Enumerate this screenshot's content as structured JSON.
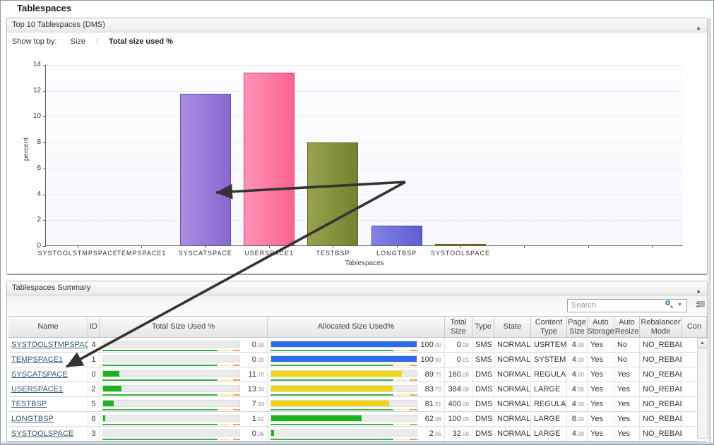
{
  "window": {
    "title": "Tablespaces"
  },
  "top_panel": {
    "title": "Top 10 Tablespaces (DMS)",
    "collapse_icon": "▲",
    "show_top_by_label": "Show top by:",
    "separator": "|",
    "options": [
      {
        "label": "Size",
        "selected": false
      },
      {
        "label": "Total size used %",
        "selected": true
      }
    ]
  },
  "chart_data": {
    "type": "bar",
    "title": "Top 10 Tablespaces (DMS)",
    "xlabel": "Tablespaces",
    "ylabel": "percent",
    "ylim": [
      0,
      14
    ],
    "ytick_step": 2,
    "grid": true,
    "categories": [
      "SYSTOOLSTMPSPACE",
      "TEMPSPACE1",
      "SYSCATSPACE",
      "USERSPACE1",
      "TESTBSP",
      "LONGTBSP",
      "SYSTOOLSPACE",
      "",
      "",
      ""
    ],
    "values": [
      0,
      0,
      11.7,
      13.34,
      7.93,
      1.51,
      0.06,
      null,
      null,
      null
    ],
    "bar_colors": [
      null,
      null,
      {
        "light": "#a88ee3",
        "dark": "#8968d0",
        "border": "#6a4bb4"
      },
      {
        "light": "#ff93b4",
        "dark": "#fa6391",
        "border": "#d93a70"
      },
      {
        "light": "#98a24e",
        "dark": "#75812e",
        "border": "#5c671f"
      },
      {
        "light": "#8183e6",
        "dark": "#5e60d2",
        "border": "#4244ac"
      },
      {
        "light": "#9a7d22",
        "dark": "#8a6d1a",
        "border": "#6f570f"
      },
      null,
      null,
      null
    ]
  },
  "summary_panel": {
    "title": "Tablespaces Summary",
    "collapse_icon": "▲",
    "search_placeholder": "Search",
    "search_caret": "▼",
    "scroll_up_icon": "▲"
  },
  "table": {
    "columns": [
      "Name",
      "ID",
      "Total Size Used %",
      "Allocated Size Used%",
      "Total Size",
      "Type",
      "State",
      "Content Type",
      "Page Size",
      "Auto Storage",
      "Auto Resize",
      "Rebalancer Mode",
      "Con"
    ],
    "rows": [
      {
        "name": "SYSTOOLSTMPSPACE",
        "id": "4",
        "total_used": "0.00",
        "alloc_used": "100.00",
        "alloc_color": "blue",
        "total_size": "0.00",
        "type": "SMS",
        "state": "NORMAL",
        "content_type": "USRTEMP",
        "page_size": "4.00",
        "auto_storage": "Yes",
        "auto_resize": "No",
        "rebalancer_mode": "NO_REBAL",
        "con": ""
      },
      {
        "name": "TEMPSPACE1",
        "id": "1",
        "total_used": "0.00",
        "alloc_used": "100.00",
        "alloc_color": "blue",
        "total_size": "0.01",
        "type": "SMS",
        "state": "NORMAL",
        "content_type": "SYSTEMP",
        "page_size": "4.00",
        "auto_storage": "Yes",
        "auto_resize": "No",
        "rebalancer_mode": "NO_REBAL",
        "con": ""
      },
      {
        "name": "SYSCATSPACE",
        "id": "0",
        "total_used": "11.70",
        "alloc_used": "89.75",
        "alloc_color": "yellow",
        "total_size": "160.00",
        "type": "DMS",
        "state": "NORMAL",
        "content_type": "REGULAR",
        "page_size": "4.00",
        "auto_storage": "Yes",
        "auto_resize": "Yes",
        "rebalancer_mode": "NO_REBAL",
        "con": ""
      },
      {
        "name": "USERSPACE1",
        "id": "2",
        "total_used": "13.34",
        "alloc_used": "83.70",
        "alloc_color": "yellow",
        "total_size": "384.00",
        "type": "DMS",
        "state": "NORMAL",
        "content_type": "LARGE",
        "page_size": "4.00",
        "auto_storage": "Yes",
        "auto_resize": "Yes",
        "rebalancer_mode": "NO_REBAL",
        "con": ""
      },
      {
        "name": "TESTBSP",
        "id": "5",
        "total_used": "7.93",
        "alloc_used": "81.21",
        "alloc_color": "yellow",
        "total_size": "400.00",
        "type": "DMS",
        "state": "NORMAL",
        "content_type": "REGULAR",
        "page_size": "4.00",
        "auto_storage": "Yes",
        "auto_resize": "Yes",
        "rebalancer_mode": "NO_REBAL",
        "con": ""
      },
      {
        "name": "LONGTBSP",
        "id": "6",
        "total_used": "1.51",
        "alloc_used": "62.06",
        "alloc_color": "green",
        "total_size": "100.00",
        "type": "DMS",
        "state": "NORMAL",
        "content_type": "LARGE",
        "page_size": "8.00",
        "auto_storage": "Yes",
        "auto_resize": "Yes",
        "rebalancer_mode": "NO_REBAL",
        "con": ""
      },
      {
        "name": "SYSTOOLSPACE",
        "id": "3",
        "total_used": "0.06",
        "alloc_used": "2.05",
        "alloc_color": "green",
        "total_size": "32.00",
        "type": "DMS",
        "state": "NORMAL",
        "content_type": "LARGE",
        "page_size": "4.00",
        "auto_storage": "Yes",
        "auto_resize": "Yes",
        "rebalancer_mode": "NO_REBAL",
        "con": ""
      }
    ]
  }
}
